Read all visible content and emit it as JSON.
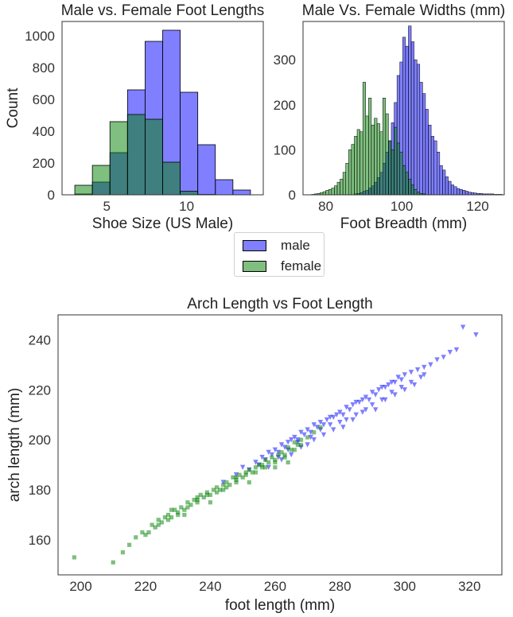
{
  "chart_data": [
    {
      "type": "bar",
      "title": "Male vs. Female Foot Lengths",
      "xlabel": "Shoe Size (US Male)",
      "ylabel": "Count",
      "xlim": [
        2.2,
        14.8
      ],
      "ylim": [
        0,
        1090
      ],
      "xticks": [
        5,
        10
      ],
      "yticks": [
        0,
        200,
        400,
        600,
        800,
        1000
      ],
      "bin_edges": [
        3,
        4.1,
        5.2,
        6.3,
        7.4,
        8.5,
        9.6,
        10.7,
        11.8,
        12.9,
        14
      ],
      "series": [
        {
          "name": "male",
          "color": "#0000ff",
          "values": [
            5,
            80,
            265,
            660,
            965,
            1035,
            645,
            315,
            95,
            30
          ]
        },
        {
          "name": "female",
          "color": "#008000",
          "values": [
            60,
            185,
            460,
            505,
            475,
            205,
            22,
            2,
            0,
            0
          ]
        }
      ]
    },
    {
      "type": "bar",
      "title": "Male Vs. Female Widths (mm)",
      "xlabel": "Foot Breadth (mm)",
      "xlim": [
        74,
        127
      ],
      "ylim": [
        0,
        385
      ],
      "xticks": [
        80,
        100,
        120
      ],
      "yticks": [
        0,
        100,
        200,
        300
      ],
      "bin_width": 0.75,
      "series": [
        {
          "name": "male",
          "color": "#0000ff",
          "x_start": 87.5,
          "values": [
            2,
            3,
            5,
            8,
            10,
            15,
            20,
            28,
            38,
            50,
            70,
            95,
            120,
            160,
            205,
            265,
            295,
            350,
            330,
            375,
            340,
            300,
            290,
            250,
            225,
            190,
            155,
            130,
            120,
            95,
            65,
            55,
            40,
            30,
            22,
            18,
            14,
            12,
            10,
            8,
            6,
            5,
            4,
            3,
            3,
            2,
            2,
            2,
            2,
            1,
            1,
            1
          ]
        },
        {
          "name": "female",
          "color": "#008000",
          "x_start": 76.25,
          "values": [
            1,
            2,
            3,
            5,
            7,
            10,
            12,
            15,
            20,
            28,
            35,
            50,
            70,
            100,
            112,
            130,
            145,
            140,
            250,
            175,
            215,
            155,
            170,
            158,
            140,
            215,
            180,
            120,
            100,
            150,
            115,
            95,
            65,
            50,
            35,
            22,
            12,
            6,
            3,
            2
          ]
        }
      ]
    },
    {
      "type": "scatter",
      "title": "Arch Length vs Foot Length",
      "xlabel": "foot length (mm)",
      "ylabel": "arch length (mm)",
      "xlim": [
        193,
        330
      ],
      "ylim": [
        146,
        250
      ],
      "xticks": [
        200,
        220,
        240,
        260,
        280,
        300,
        320
      ],
      "yticks": [
        160,
        180,
        200,
        220,
        240
      ],
      "series": [
        {
          "name": "male",
          "color": "#0000ff",
          "marker": "triangle-down",
          "x": [
            244,
            248,
            250,
            252,
            254,
            255,
            256,
            257,
            258,
            259,
            260,
            261,
            262,
            263,
            264,
            265,
            266,
            267,
            268,
            269,
            270,
            271,
            272,
            273,
            274,
            275,
            276,
            277,
            278,
            279,
            280,
            281,
            282,
            283,
            284,
            285,
            286,
            287,
            288,
            289,
            290,
            291,
            292,
            293,
            294,
            295,
            296,
            297,
            298,
            299,
            300,
            302,
            304,
            306,
            308,
            310,
            312,
            314,
            316,
            318,
            322,
            262,
            265,
            268,
            270,
            272,
            275,
            278,
            280,
            282,
            285,
            288,
            290,
            293,
            296,
            299,
            302,
            305,
            258,
            261,
            264,
            267,
            271,
            274,
            277,
            281,
            284,
            287,
            291,
            294,
            297,
            300,
            303,
            306
          ],
          "y": [
            183,
            186,
            189,
            188,
            191,
            190,
            193,
            192,
            195,
            194,
            196,
            195,
            198,
            197,
            199,
            200,
            201,
            200,
            203,
            202,
            204,
            203,
            206,
            205,
            207,
            206,
            208,
            209,
            209,
            210,
            211,
            210,
            213,
            212,
            214,
            215,
            215,
            216,
            217,
            216,
            219,
            218,
            220,
            221,
            221,
            222,
            223,
            223,
            225,
            224,
            226,
            227,
            228,
            229,
            230,
            232,
            233,
            235,
            236,
            245,
            242,
            192,
            194,
            197,
            198,
            200,
            202,
            204,
            207,
            208,
            210,
            212,
            214,
            216,
            219,
            221,
            223,
            225,
            189,
            193,
            196,
            199,
            201,
            204,
            206,
            205,
            208,
            211,
            212,
            216,
            218,
            220,
            222,
            226
          ]
        },
        {
          "name": "female",
          "color": "#008000",
          "marker": "square",
          "x": [
            198,
            210,
            213,
            215,
            217,
            219,
            220,
            222,
            223,
            224,
            225,
            226,
            227,
            228,
            229,
            230,
            231,
            232,
            233,
            234,
            235,
            236,
            237,
            238,
            239,
            240,
            241,
            242,
            243,
            244,
            245,
            246,
            247,
            248,
            249,
            250,
            251,
            252,
            253,
            254,
            255,
            256,
            257,
            258,
            259,
            260,
            261,
            262,
            263,
            264,
            265,
            266,
            267,
            268,
            270,
            272,
            274,
            221,
            224,
            227,
            230,
            233,
            236,
            239,
            242,
            245,
            248,
            251,
            254,
            257,
            260,
            263,
            266,
            228,
            232,
            236,
            240,
            244,
            248,
            252,
            256,
            260,
            264,
            268
          ],
          "y": [
            153,
            151,
            155,
            158,
            161,
            163,
            162,
            166,
            165,
            168,
            167,
            169,
            170,
            169,
            172,
            171,
            173,
            172,
            175,
            174,
            176,
            175,
            178,
            177,
            179,
            178,
            180,
            181,
            180,
            182,
            183,
            182,
            185,
            184,
            186,
            185,
            187,
            188,
            187,
            189,
            190,
            189,
            192,
            191,
            193,
            192,
            194,
            195,
            194,
            197,
            196,
            199,
            198,
            200,
            201,
            203,
            205,
            163,
            166,
            168,
            170,
            173,
            176,
            178,
            179,
            181,
            183,
            186,
            187,
            189,
            191,
            193,
            196,
            172,
            170,
            177,
            175,
            180,
            185,
            183,
            190,
            189,
            191,
            198
          ]
        }
      ]
    }
  ],
  "legend": {
    "items": [
      {
        "label": "male",
        "color": "#0000ff"
      },
      {
        "label": "female",
        "color": "#008000"
      }
    ]
  }
}
